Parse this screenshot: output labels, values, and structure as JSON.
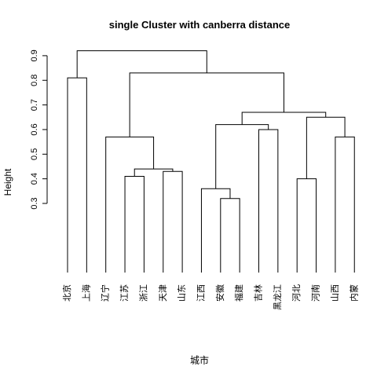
{
  "chart_data": {
    "type": "dendrogram",
    "title": "single Cluster with canberra distance",
    "xlabel": "城市",
    "ylabel": "Height",
    "ylim": [
      0.3,
      0.92
    ],
    "yticks": [
      "0.3",
      "0.4",
      "0.5",
      "0.6",
      "0.7",
      "0.8",
      "0.9"
    ],
    "leaves": [
      "北京",
      "上海",
      "辽宁",
      "江苏",
      "浙江",
      "天津",
      "山东",
      "江西",
      "安徽",
      "福建",
      "吉林",
      "黑龙江",
      "河北",
      "河南",
      "山西",
      "内蒙"
    ],
    "merges": [
      {
        "left": "安徽",
        "right": "福建",
        "height": 0.32
      },
      {
        "left": "江苏",
        "right": "浙江",
        "height": 0.41
      },
      {
        "left": "天津",
        "right": "山东",
        "height": 0.43
      },
      {
        "left": "河北",
        "right": "河南",
        "height": 0.4
      },
      {
        "left": "江苏+浙江",
        "right": "天津+山东",
        "height": 0.44
      },
      {
        "left": "江西",
        "right": "安徽+福建",
        "height": 0.36
      },
      {
        "left": "辽宁",
        "right": "江苏+浙江+天津+山东",
        "height": 0.57
      },
      {
        "left": "山西",
        "right": "内蒙",
        "height": 0.57
      },
      {
        "left": "吉林",
        "right": "黑龙江",
        "height": 0.6
      },
      {
        "left": "江西+安徽+福建",
        "right": "吉林+黑龙江",
        "height": 0.62
      },
      {
        "left": "河北+河南",
        "right": "山西+内蒙",
        "height": 0.65
      },
      {
        "left": "江西+安徽+福建+吉林+黑龙江",
        "right": "河北+河南+山西+内蒙",
        "height": 0.67
      },
      {
        "left": "北京",
        "right": "上海",
        "height": 0.81
      },
      {
        "left": "辽宁+江苏+浙江+天津+山东",
        "right": "江西+安徽+福建+吉林+黑龙江+河北+河南+山西+内蒙",
        "height": 0.83
      },
      {
        "left": "北京+上海",
        "right": "辽宁+江苏+浙江+天津+山东+江西+安徽+福建+吉林+黑龙江+河北+河南+山西+内蒙",
        "height": 0.92
      }
    ]
  }
}
